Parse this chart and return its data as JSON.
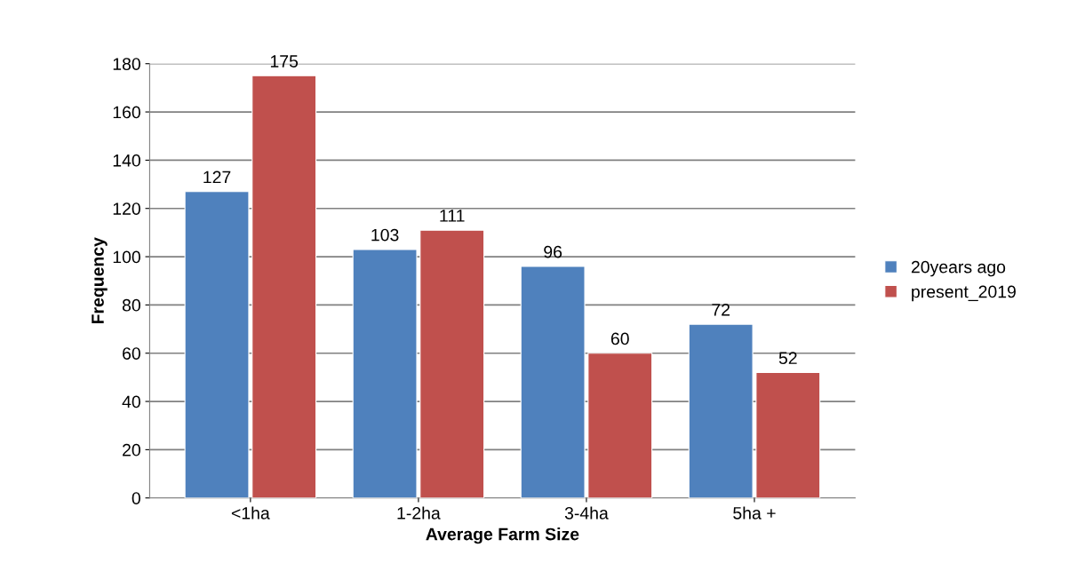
{
  "chart_data": {
    "type": "bar",
    "xlabel": "Average Farm Size",
    "ylabel": "Frequency",
    "categories": [
      "<1ha",
      "1-2ha",
      "3-4ha",
      "5ha +"
    ],
    "series": [
      {
        "name": "20years ago",
        "color": "#4f81bd",
        "values": [
          127,
          103,
          96,
          72
        ]
      },
      {
        "name": "present_2019",
        "color": "#c0504d",
        "values": [
          175,
          111,
          60,
          52
        ]
      }
    ],
    "ylim": [
      0,
      180
    ],
    "yticks": [
      0,
      20,
      40,
      60,
      80,
      100,
      120,
      140,
      160,
      180
    ],
    "grid": "y",
    "legend": "right",
    "data_labels": true
  }
}
